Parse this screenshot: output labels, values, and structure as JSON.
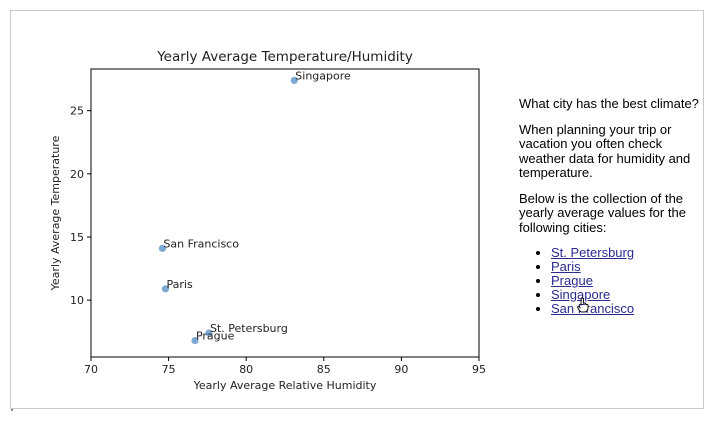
{
  "chart_data": {
    "type": "scatter",
    "title": "Yearly Average Temperature/Humidity",
    "xlabel": "Yearly Average Relative Humidity",
    "ylabel": "Yearly Average Temperature",
    "xlim": [
      70,
      95
    ],
    "ylim": [
      5.5,
      28.3
    ],
    "xticks": [
      70,
      75,
      80,
      85,
      90,
      95
    ],
    "yticks": [
      10,
      15,
      20,
      25
    ],
    "grid": false,
    "point_color": "#6699cc",
    "points": [
      {
        "label": "Singapore",
        "x": 83.1,
        "y": 27.4
      },
      {
        "label": "San Francisco",
        "x": 74.6,
        "y": 14.1
      },
      {
        "label": "Paris",
        "x": 74.8,
        "y": 10.9
      },
      {
        "label": "St. Petersburg",
        "x": 77.6,
        "y": 7.4
      },
      {
        "label": "Prague",
        "x": 76.7,
        "y": 6.8
      }
    ]
  },
  "side": {
    "question": "What city has the best climate?",
    "para1": "When planning your trip or vacation you often check weather data for humidity and temperature.",
    "para2": "Below is the collection of the yearly average values for the following cities:",
    "cities": [
      "St. Petersburg",
      "Paris",
      "Prague",
      "Singapore",
      "San Francisco"
    ]
  },
  "colors": {
    "link": "#2a2a8f",
    "frame_border": "#c9c9c9"
  }
}
